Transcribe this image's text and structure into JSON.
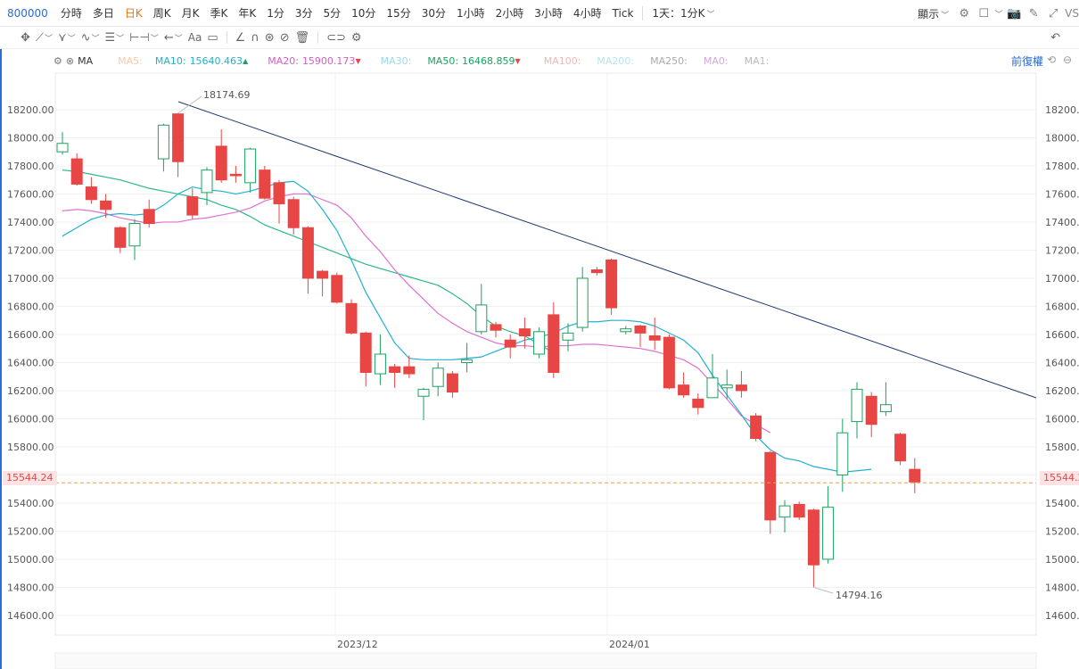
{
  "symbol": "800000",
  "timeframes": [
    "分時",
    "多日",
    "日K",
    "周K",
    "月K",
    "季K",
    "年K",
    "1分",
    "3分",
    "5分",
    "10分",
    "15分",
    "30分",
    "1小時",
    "2小時",
    "3小時",
    "4小時",
    "Tick"
  ],
  "active_timeframe_index": 2,
  "interval_select": "1天：1分K",
  "display_label": "顯示",
  "vs_label": "VS",
  "indicator": {
    "name": "MA",
    "ma5": "MA5:",
    "ma10_label": "MA10:",
    "ma10_value": "15640.463",
    "ma20_label": "MA20:",
    "ma20_value": "15900.173",
    "ma30": "MA30:",
    "ma50_label": "MA50:",
    "ma50_value": "16468.859",
    "ma100": "MA100:",
    "ma200": "MA200:",
    "ma250": "MA250:",
    "ma0": "MA0:",
    "ma1": "MA1:",
    "adjust": "前復權"
  },
  "price_now_label": "15544.24",
  "high_marker": "18174.69",
  "low_marker": "14794.16",
  "colors": {
    "up": "#1aa260",
    "down": "#e84545",
    "ma10": "#22b0cf",
    "ma20": "#e070d0",
    "ma50": "#2bb888",
    "trend": "#1f3b6e",
    "accent": "#e8760c"
  },
  "chart_data": {
    "type": "candlestick",
    "y_ticks": [
      "18200.00",
      "18000.00",
      "17800.00",
      "17600.00",
      "17400.00",
      "17200.00",
      "17000.00",
      "16800.00",
      "16600.00",
      "16400.00",
      "16200.00",
      "16000.00",
      "15800.00",
      "15600.00",
      "15400.00",
      "15200.00",
      "15000.00",
      "14800.00",
      "14600.00"
    ],
    "x_labels": [
      "2023/12",
      "2024/01"
    ],
    "ylim": [
      14460,
      18460
    ],
    "candles": [
      [
        17900,
        17960,
        17880,
        18040
      ],
      [
        17850,
        17670,
        17660,
        17890
      ],
      [
        17650,
        17560,
        17530,
        17720
      ],
      [
        17550,
        17490,
        17430,
        17600
      ],
      [
        17360,
        17220,
        17180,
        17370
      ],
      [
        17230,
        17390,
        17130,
        17420
      ],
      [
        17490,
        17390,
        17360,
        17560
      ],
      [
        17850,
        18090,
        17760,
        18100
      ],
      [
        18170,
        17830,
        17720,
        18175
      ],
      [
        17580,
        17450,
        17420,
        17640
      ],
      [
        17610,
        17770,
        17520,
        17790
      ],
      [
        17940,
        17700,
        17680,
        18060
      ],
      [
        17740,
        17730,
        17680,
        17800
      ],
      [
        17680,
        17920,
        17610,
        17930
      ],
      [
        17770,
        17570,
        17560,
        17800
      ],
      [
        17680,
        17530,
        17390,
        17700
      ],
      [
        17560,
        17360,
        17310,
        17580
      ],
      [
        17360,
        17000,
        16890,
        17370
      ],
      [
        17050,
        17000,
        16870,
        17060
      ],
      [
        17020,
        16830,
        16820,
        17040
      ],
      [
        16820,
        16610,
        16600,
        16850
      ],
      [
        16610,
        16330,
        16230,
        16620
      ],
      [
        16320,
        16460,
        16240,
        16600
      ],
      [
        16370,
        16330,
        16220,
        16390
      ],
      [
        16370,
        16320,
        16290,
        16450
      ],
      [
        16160,
        16210,
        15990,
        16220
      ],
      [
        16230,
        16360,
        16160,
        16400
      ],
      [
        16320,
        16190,
        16150,
        16340
      ],
      [
        16400,
        16420,
        16330,
        16540
      ],
      [
        16620,
        16810,
        16600,
        16960
      ],
      [
        16670,
        16630,
        16580,
        16690
      ],
      [
        16560,
        16510,
        16430,
        16600
      ],
      [
        16640,
        16590,
        16500,
        16720
      ],
      [
        16460,
        16620,
        16430,
        16650
      ],
      [
        16740,
        16330,
        16290,
        16830
      ],
      [
        16560,
        16610,
        16480,
        16680
      ],
      [
        16650,
        17000,
        16620,
        17080
      ],
      [
        17060,
        17040,
        17020,
        17080
      ],
      [
        17130,
        16790,
        16740,
        17140
      ],
      [
        16620,
        16640,
        16600,
        16660
      ],
      [
        16660,
        16610,
        16510,
        16670
      ],
      [
        16590,
        16560,
        16490,
        16720
      ],
      [
        16580,
        16220,
        16210,
        16600
      ],
      [
        16240,
        16170,
        16150,
        16330
      ],
      [
        16140,
        16080,
        16030,
        16180
      ],
      [
        16150,
        16290,
        16160,
        16460
      ],
      [
        16220,
        16240,
        16140,
        16350
      ],
      [
        16240,
        16200,
        16150,
        16340
      ],
      [
        16020,
        15860,
        15840,
        16040
      ],
      [
        15760,
        15280,
        15180,
        15770
      ],
      [
        15300,
        15380,
        15190,
        15420
      ],
      [
        15390,
        15300,
        15280,
        15410
      ],
      [
        15350,
        14960,
        14800,
        15360
      ],
      [
        15000,
        15370,
        14970,
        15520
      ],
      [
        15600,
        15900,
        15480,
        16000
      ],
      [
        15980,
        16210,
        15860,
        16260
      ],
      [
        16160,
        15960,
        15870,
        16190
      ],
      [
        16050,
        16100,
        16020,
        16260
      ],
      [
        15890,
        15700,
        15670,
        15900
      ],
      [
        15640,
        15550,
        15470,
        15720
      ]
    ],
    "ma10": [
      17300,
      17360,
      17420,
      17450,
      17460,
      17450,
      17460,
      17520,
      17600,
      17650,
      17630,
      17620,
      17600,
      17620,
      17650,
      17680,
      17690,
      17620,
      17490,
      17340,
      17130,
      16900,
      16720,
      16540,
      16430,
      16420,
      16420,
      16420,
      16430,
      16440,
      16480,
      16520,
      16560,
      16580,
      16610,
      16660,
      16690,
      16690,
      16700,
      16700,
      16690,
      16660,
      16610,
      16560,
      16470,
      16310,
      16170,
      16030,
      15880,
      15780,
      15720,
      15700,
      15660,
      15640,
      15620,
      15630,
      15640
    ],
    "ma20": [
      17480,
      17490,
      17480,
      17460,
      17430,
      17410,
      17390,
      17400,
      17400,
      17420,
      17430,
      17450,
      17470,
      17500,
      17550,
      17580,
      17600,
      17600,
      17560,
      17520,
      17430,
      17300,
      17190,
      17060,
      16950,
      16850,
      16750,
      16680,
      16620,
      16580,
      16540,
      16520,
      16520,
      16510,
      16520,
      16520,
      16530,
      16530,
      16520,
      16510,
      16500,
      16480,
      16450,
      16420,
      16360,
      16250,
      16140,
      16020,
      15960,
      15900
    ],
    "ma50": [
      17770,
      17760,
      17740,
      17720,
      17700,
      17670,
      17640,
      17620,
      17600,
      17580,
      17560,
      17520,
      17490,
      17440,
      17380,
      17340,
      17300,
      17260,
      17220,
      17180,
      17140,
      17100,
      17070,
      17040,
      17010,
      16980,
      16950,
      16890,
      16820,
      16730,
      16660,
      16620,
      16590,
      16530,
      16470
    ]
  }
}
